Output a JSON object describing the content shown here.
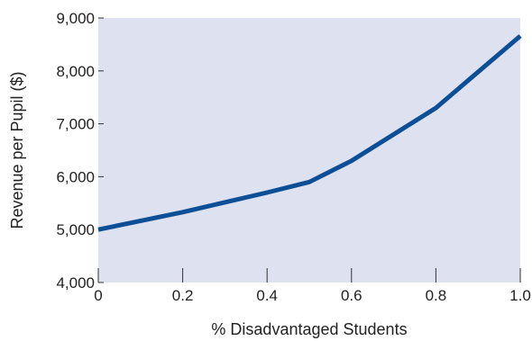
{
  "chart_data": {
    "type": "line",
    "title": "",
    "xlabel": "% Disadvantaged Students",
    "ylabel": "Revenue per Pupil ($)",
    "xlim": [
      0,
      1.0
    ],
    "ylim": [
      4000,
      9000
    ],
    "x_ticks": [
      0,
      0.2,
      0.4,
      0.6,
      0.8,
      1.0
    ],
    "x_tick_labels": [
      "0",
      "0.2",
      "0.4",
      "0.6",
      "0.8",
      "1.0"
    ],
    "y_ticks": [
      4000,
      5000,
      6000,
      7000,
      8000,
      9000
    ],
    "y_tick_labels": [
      "4,000",
      "5,000",
      "6,000",
      "7,000",
      "8,000",
      "9,000"
    ],
    "grid": false,
    "plot_background": "#dde1f0",
    "series": [
      {
        "color": "#0d4f96",
        "x": [
          0,
          0.2,
          0.4,
          0.5,
          0.6,
          0.8,
          1.0
        ],
        "y": [
          5000,
          5330,
          5700,
          5900,
          6300,
          7300,
          8660
        ]
      }
    ]
  }
}
